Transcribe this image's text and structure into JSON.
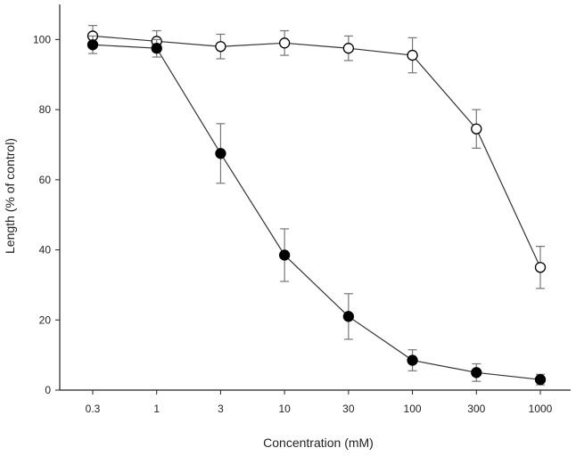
{
  "chart_data": {
    "type": "line",
    "title": "",
    "xlabel": "Concentration (mM)",
    "ylabel": "Length (% of control)",
    "x_scale": "log",
    "categories": [
      "0.3",
      "1",
      "3",
      "10",
      "30",
      "100",
      "300",
      "1000"
    ],
    "x": [
      0.3,
      1,
      3,
      10,
      30,
      100,
      300,
      1000
    ],
    "ylim": [
      0,
      110
    ],
    "yticks": [
      0,
      20,
      40,
      60,
      80,
      100
    ],
    "grid": false,
    "legend": "none",
    "series": [
      {
        "marker": "open-circle",
        "values": [
          101,
          99.5,
          98,
          99,
          97.5,
          95.5,
          74.5,
          35
        ],
        "error": [
          3,
          3,
          3.5,
          3.5,
          3.5,
          5,
          5.5,
          6
        ]
      },
      {
        "marker": "filled-circle",
        "values": [
          98.5,
          97.5,
          67.5,
          38.5,
          21,
          8.5,
          5,
          3
        ],
        "error": [
          2.5,
          2.5,
          8.5,
          7.5,
          6.5,
          3,
          2.5,
          1.5
        ]
      }
    ],
    "colors": {
      "line": "#333333",
      "marker_fill": "#000000",
      "marker_open": "#ffffff",
      "error_bar": "#777777"
    }
  }
}
